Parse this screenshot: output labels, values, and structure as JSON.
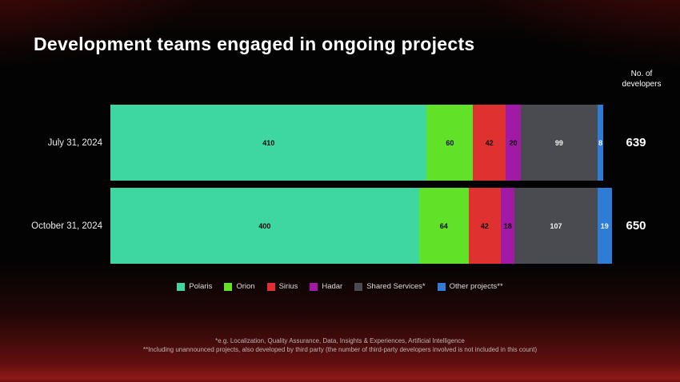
{
  "title": "Development teams engaged in ongoing projects",
  "axis_note": "No. of developers",
  "chart_data": {
    "type": "bar",
    "orientation": "horizontal",
    "stacked": true,
    "title": "Development teams engaged in ongoing projects",
    "xlabel": "",
    "ylabel": "No. of developers",
    "xmax": 650,
    "grid": false,
    "legend_position": "bottom",
    "categories": [
      "July 31, 2024",
      "October 31, 2024"
    ],
    "series": [
      {
        "name": "Polaris",
        "color": "#3fd7a1",
        "label_color": "#0a0a0a",
        "values": [
          410,
          400
        ]
      },
      {
        "name": "Orion",
        "color": "#62e129",
        "label_color": "#0a0a0a",
        "values": [
          60,
          64
        ]
      },
      {
        "name": "Sirius",
        "color": "#e03131",
        "label_color": "#0a0a0a",
        "values": [
          42,
          42
        ]
      },
      {
        "name": "Hadar",
        "color": "#a119a4",
        "label_color": "#0a0a0a",
        "values": [
          20,
          18
        ]
      },
      {
        "name": "Shared Services*",
        "color": "#4a4b50",
        "label_color": "#f2f2f2",
        "values": [
          99,
          107
        ]
      },
      {
        "name": "Other projects**",
        "color": "#2e7cd6",
        "label_color": "#f2f2f2",
        "values": [
          8,
          19
        ]
      }
    ],
    "totals": [
      639,
      650
    ]
  },
  "footnotes": [
    "*e.g. Localization, Quality Assurance, Data, Insights & Experiences, Artificial Intelligence",
    "**Including unannounced projects, also developed by third party (the number of third-party developers involved is not included in this count)"
  ]
}
